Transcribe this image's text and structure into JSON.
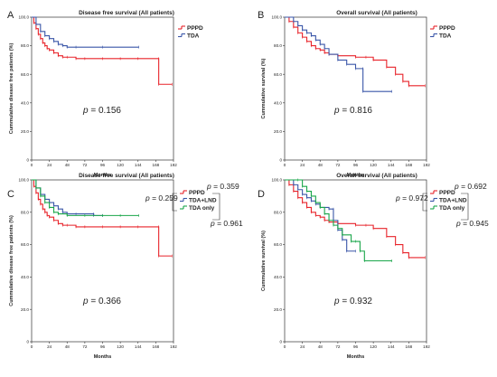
{
  "chart_data": [
    {
      "type": "line",
      "panel": "A",
      "title": "Disease free survival (All patients)",
      "xlabel": "Months",
      "ylabel": "Cummulative disease free patients (%)",
      "xlim": [
        0,
        192
      ],
      "ylim": [
        0,
        100
      ],
      "xticks": [
        0,
        24,
        48,
        72,
        96,
        120,
        144,
        168,
        192
      ],
      "yticks": [
        0,
        20,
        40,
        60,
        80,
        100
      ],
      "legend_position": "top-right",
      "series": [
        {
          "name": "PPPD",
          "color": "#e8232a",
          "points": [
            [
              0,
              100
            ],
            [
              3,
              96
            ],
            [
              6,
              92
            ],
            [
              9,
              88
            ],
            [
              12,
              85
            ],
            [
              15,
              82
            ],
            [
              18,
              80
            ],
            [
              21,
              78
            ],
            [
              24,
              77
            ],
            [
              30,
              75
            ],
            [
              36,
              73
            ],
            [
              42,
              72
            ],
            [
              48,
              72
            ],
            [
              60,
              71
            ],
            [
              72,
              71
            ],
            [
              96,
              71
            ],
            [
              120,
              71
            ],
            [
              144,
              71
            ],
            [
              172,
              71
            ],
            [
              172,
              53
            ],
            [
              190,
              53
            ]
          ]
        },
        {
          "name": "TDA",
          "color": "#3a56a8",
          "points": [
            [
              0,
              100
            ],
            [
              6,
              95
            ],
            [
              12,
              90
            ],
            [
              18,
              87
            ],
            [
              24,
              85
            ],
            [
              30,
              83
            ],
            [
              36,
              81
            ],
            [
              42,
              80
            ],
            [
              48,
              79
            ],
            [
              60,
              79
            ],
            [
              96,
              79
            ],
            [
              145,
              79
            ]
          ]
        }
      ],
      "annotations": [
        {
          "prefix": "p",
          "text": " = 0.156"
        }
      ]
    },
    {
      "type": "line",
      "panel": "B",
      "title": "Overall survival (All patients)",
      "xlabel": "Months",
      "ylabel": "Cummulative survival (%)",
      "xlim": [
        0,
        192
      ],
      "ylim": [
        0,
        100
      ],
      "xticks": [
        0,
        24,
        48,
        72,
        96,
        120,
        144,
        168,
        192
      ],
      "yticks": [
        0,
        20,
        40,
        60,
        80,
        100
      ],
      "legend_position": "top-right",
      "series": [
        {
          "name": "PPPD",
          "color": "#e8232a",
          "points": [
            [
              0,
              100
            ],
            [
              6,
              97
            ],
            [
              12,
              93
            ],
            [
              18,
              89
            ],
            [
              24,
              86
            ],
            [
              30,
              83
            ],
            [
              36,
              80
            ],
            [
              42,
              78
            ],
            [
              48,
              77
            ],
            [
              54,
              75
            ],
            [
              60,
              74
            ],
            [
              72,
              73
            ],
            [
              96,
              72
            ],
            [
              110,
              72
            ],
            [
              120,
              70
            ],
            [
              138,
              65
            ],
            [
              150,
              60
            ],
            [
              160,
              55
            ],
            [
              168,
              52
            ],
            [
              190,
              52
            ]
          ]
        },
        {
          "name": "TDA",
          "color": "#3a56a8",
          "points": [
            [
              0,
              100
            ],
            [
              12,
              97
            ],
            [
              18,
              94
            ],
            [
              24,
              91
            ],
            [
              30,
              89
            ],
            [
              36,
              87
            ],
            [
              42,
              84
            ],
            [
              48,
              81
            ],
            [
              54,
              78
            ],
            [
              60,
              74
            ],
            [
              72,
              70
            ],
            [
              84,
              67
            ],
            [
              96,
              64
            ],
            [
              106,
              64
            ],
            [
              106,
              48
            ],
            [
              145,
              48
            ]
          ]
        }
      ],
      "annotations": [
        {
          "prefix": "p",
          "text": " = 0.816"
        }
      ]
    },
    {
      "type": "line",
      "panel": "C",
      "title": "Disease free survival (All patients)",
      "xlabel": "Months",
      "ylabel": "Cummulative disease free patients (%)",
      "xlim": [
        0,
        192
      ],
      "ylim": [
        0,
        100
      ],
      "xticks": [
        0,
        24,
        48,
        72,
        96,
        120,
        144,
        168,
        192
      ],
      "yticks": [
        0,
        20,
        40,
        60,
        80,
        100
      ],
      "legend_position": "top-right",
      "series": [
        {
          "name": "PPPD",
          "color": "#e8232a",
          "points": [
            [
              0,
              100
            ],
            [
              3,
              96
            ],
            [
              6,
              92
            ],
            [
              9,
              88
            ],
            [
              12,
              85
            ],
            [
              15,
              82
            ],
            [
              18,
              80
            ],
            [
              21,
              78
            ],
            [
              24,
              77
            ],
            [
              30,
              75
            ],
            [
              36,
              73
            ],
            [
              42,
              72
            ],
            [
              48,
              72
            ],
            [
              60,
              71
            ],
            [
              72,
              71
            ],
            [
              96,
              71
            ],
            [
              120,
              71
            ],
            [
              144,
              71
            ],
            [
              172,
              71
            ],
            [
              172,
              53
            ],
            [
              190,
              53
            ]
          ]
        },
        {
          "name": "TDA+LND",
          "color": "#3a56a8",
          "points": [
            [
              0,
              100
            ],
            [
              6,
              95
            ],
            [
              12,
              91
            ],
            [
              18,
              88
            ],
            [
              24,
              86
            ],
            [
              30,
              84
            ],
            [
              36,
              82
            ],
            [
              42,
              80
            ],
            [
              48,
              79
            ],
            [
              60,
              79
            ],
            [
              84,
              79
            ],
            [
              84,
              78
            ],
            [
              96,
              78
            ]
          ]
        },
        {
          "name": "TDA only",
          "color": "#1aa64a",
          "points": [
            [
              0,
              100
            ],
            [
              6,
              95
            ],
            [
              12,
              90
            ],
            [
              18,
              86
            ],
            [
              24,
              83
            ],
            [
              30,
              80
            ],
            [
              36,
              79
            ],
            [
              48,
              78
            ],
            [
              72,
              78
            ],
            [
              96,
              78
            ],
            [
              120,
              78
            ],
            [
              145,
              78
            ]
          ]
        }
      ],
      "annotations": [
        {
          "prefix": "p",
          "text": " = 0.359"
        },
        {
          "prefix": "p",
          "text": " = 0.259"
        },
        {
          "prefix": "p",
          "text": " = 0.961"
        },
        {
          "prefix": "p",
          "text": " = 0.366"
        }
      ]
    },
    {
      "type": "line",
      "panel": "D",
      "title": "Overall survival (All patients)",
      "xlabel": "Months",
      "ylabel": "Cummulative survival (%)",
      "xlim": [
        0,
        192
      ],
      "ylim": [
        0,
        100
      ],
      "xticks": [
        0,
        24,
        48,
        72,
        96,
        120,
        144,
        168,
        192
      ],
      "yticks": [
        0,
        20,
        40,
        60,
        80,
        100
      ],
      "legend_position": "top-right",
      "series": [
        {
          "name": "PPPD",
          "color": "#e8232a",
          "points": [
            [
              0,
              100
            ],
            [
              6,
              97
            ],
            [
              12,
              93
            ],
            [
              18,
              89
            ],
            [
              24,
              86
            ],
            [
              30,
              83
            ],
            [
              36,
              80
            ],
            [
              42,
              78
            ],
            [
              48,
              77
            ],
            [
              54,
              75
            ],
            [
              60,
              74
            ],
            [
              72,
              73
            ],
            [
              96,
              72
            ],
            [
              110,
              72
            ],
            [
              120,
              70
            ],
            [
              138,
              65
            ],
            [
              150,
              60
            ],
            [
              160,
              55
            ],
            [
              168,
              52
            ],
            [
              190,
              52
            ]
          ]
        },
        {
          "name": "TDA+LND",
          "color": "#3a56a8",
          "points": [
            [
              0,
              100
            ],
            [
              12,
              97
            ],
            [
              18,
              94
            ],
            [
              24,
              91
            ],
            [
              30,
              89
            ],
            [
              36,
              87
            ],
            [
              42,
              85
            ],
            [
              48,
              83
            ],
            [
              60,
              82
            ],
            [
              66,
              82
            ],
            [
              66,
              75
            ],
            [
              72,
              69
            ],
            [
              78,
              63
            ],
            [
              84,
              56
            ],
            [
              96,
              56
            ]
          ]
        },
        {
          "name": "TDA only",
          "color": "#1aa64a",
          "points": [
            [
              0,
              100
            ],
            [
              18,
              100
            ],
            [
              24,
              96
            ],
            [
              30,
              93
            ],
            [
              36,
              90
            ],
            [
              42,
              86
            ],
            [
              48,
              83
            ],
            [
              54,
              79
            ],
            [
              60,
              75
            ],
            [
              66,
              72
            ],
            [
              72,
              70
            ],
            [
              78,
              66
            ],
            [
              90,
              62
            ],
            [
              96,
              62
            ],
            [
              102,
              56
            ],
            [
              108,
              50
            ],
            [
              145,
              50
            ]
          ]
        }
      ],
      "annotations": [
        {
          "prefix": "p",
          "text": " = 0.692"
        },
        {
          "prefix": "p",
          "text": " = 0.972"
        },
        {
          "prefix": "p",
          "text": " = 0.945"
        },
        {
          "prefix": "p",
          "text": " = 0.932"
        }
      ]
    }
  ]
}
